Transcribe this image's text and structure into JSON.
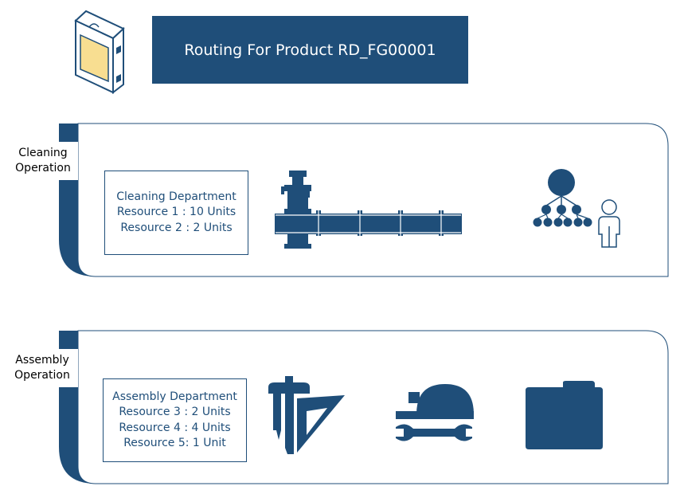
{
  "title": "Routing For Product RD_FG00001",
  "colors": {
    "primary": "#1f4e79",
    "card_border": "#1f4e79",
    "product_accent": "#f8de91"
  },
  "icons": {
    "header": "product-box-icon",
    "cleaning": [
      "pipe-valve-icon",
      "org-hierarchy-user-icon"
    ],
    "assembly": [
      "drafting-tools-icon",
      "hardhat-wrench-icon",
      "folder-icon"
    ]
  },
  "operations": [
    {
      "label_line1": "Cleaning",
      "label_line2": "Operation",
      "department": "Cleaning Department",
      "resources": [
        "Resource 1 : 10 Units",
        "Resource 2 : 2 Units"
      ]
    },
    {
      "label_line1": "Assembly",
      "label_line2": "Operation",
      "department": "Assembly Department",
      "resources": [
        "Resource 3 : 2 Units",
        "Resource 4 : 4 Units",
        "Resource 5: 1 Unit"
      ]
    }
  ]
}
